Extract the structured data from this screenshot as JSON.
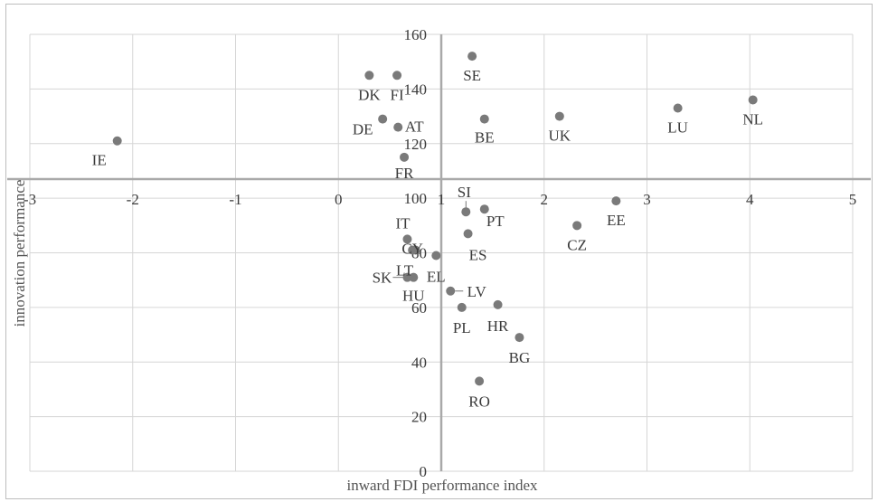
{
  "chart_data": {
    "type": "scatter",
    "title": "",
    "xlabel": "inward FDI performance index",
    "ylabel": "innovation performance",
    "xlim": [
      -3,
      5
    ],
    "ylim": [
      0,
      160
    ],
    "x_ticks": [
      -3,
      -2,
      -1,
      0,
      1,
      2,
      3,
      4,
      5
    ],
    "y_ticks": [
      0,
      20,
      40,
      60,
      80,
      100,
      120,
      140,
      160
    ],
    "x_tick_labels": [
      "-3",
      "-2",
      "-1",
      "0",
      "1",
      "2",
      "3",
      "4",
      "5"
    ],
    "y_tick_labels": [
      "0",
      "20",
      "40",
      "60",
      "80",
      "100",
      "120",
      "140",
      "160"
    ],
    "crosshair_y": 107,
    "grid": true,
    "points": [
      {
        "label": "SE",
        "x": 1.3,
        "y": 152
      },
      {
        "label": "DK",
        "x": 0.3,
        "y": 145
      },
      {
        "label": "FI",
        "x": 0.57,
        "y": 145
      },
      {
        "label": "NL",
        "x": 4.03,
        "y": 136
      },
      {
        "label": "LU",
        "x": 3.3,
        "y": 133
      },
      {
        "label": "UK",
        "x": 2.15,
        "y": 130
      },
      {
        "label": "BE",
        "x": 1.42,
        "y": 129
      },
      {
        "label": "DE",
        "x": 0.43,
        "y": 129
      },
      {
        "label": "AT",
        "x": 0.58,
        "y": 126
      },
      {
        "label": "IE",
        "x": -2.15,
        "y": 121
      },
      {
        "label": "FR",
        "x": 0.64,
        "y": 115
      },
      {
        "label": "EE",
        "x": 2.7,
        "y": 99
      },
      {
        "label": "PT",
        "x": 1.42,
        "y": 96
      },
      {
        "label": "SI",
        "x": 1.24,
        "y": 95
      },
      {
        "label": "CZ",
        "x": 2.32,
        "y": 90
      },
      {
        "label": "ES",
        "x": 1.26,
        "y": 87
      },
      {
        "label": "IT",
        "x": 0.67,
        "y": 85
      },
      {
        "label": "CY",
        "x": 0.72,
        "y": 81
      },
      {
        "label": "EL",
        "x": 0.95,
        "y": 79
      },
      {
        "label": "LT",
        "x": 0.75,
        "y": 81
      },
      {
        "label": "SK",
        "x": 0.67,
        "y": 71
      },
      {
        "label": "HU",
        "x": 0.73,
        "y": 71
      },
      {
        "label": "LV",
        "x": 1.09,
        "y": 66
      },
      {
        "label": "HR",
        "x": 1.55,
        "y": 61
      },
      {
        "label": "PL",
        "x": 1.2,
        "y": 60
      },
      {
        "label": "BG",
        "x": 1.76,
        "y": 49
      },
      {
        "label": "RO",
        "x": 1.37,
        "y": 33
      }
    ]
  }
}
